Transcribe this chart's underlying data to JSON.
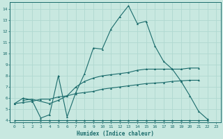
{
  "xlabel": "Humidex (Indice chaleur)",
  "xlim": [
    -0.5,
    23.5
  ],
  "ylim": [
    3.8,
    14.6
  ],
  "yticks": [
    4,
    5,
    6,
    7,
    8,
    9,
    10,
    11,
    12,
    13,
    14
  ],
  "xticks": [
    0,
    1,
    2,
    3,
    4,
    5,
    6,
    7,
    8,
    9,
    10,
    11,
    12,
    13,
    14,
    15,
    16,
    17,
    18,
    19,
    20,
    21,
    22,
    23
  ],
  "bg_color": "#c8e8e0",
  "line_color": "#1a6b6b",
  "grid_color": "#b0d8d0",
  "line1_x": [
    0,
    1,
    2,
    3,
    4,
    5,
    6,
    7,
    8,
    9,
    10,
    11,
    12,
    13,
    14,
    15,
    16,
    17,
    18,
    19,
    20,
    21,
    22
  ],
  "line1_y": [
    5.5,
    6.0,
    5.8,
    4.2,
    4.5,
    8.0,
    4.3,
    6.5,
    8.2,
    10.5,
    10.4,
    12.2,
    13.3,
    14.3,
    12.7,
    12.9,
    10.7,
    9.3,
    8.6,
    7.5,
    6.2,
    4.8,
    4.1
  ],
  "line2_x": [
    1,
    2,
    4,
    5,
    6,
    7,
    8,
    9,
    10,
    11,
    12,
    13,
    14,
    15,
    16,
    17,
    18,
    19,
    20,
    21
  ],
  "line2_y": [
    5.8,
    5.9,
    5.5,
    5.8,
    6.2,
    7.0,
    7.5,
    7.8,
    8.0,
    8.1,
    8.2,
    8.3,
    8.5,
    8.6,
    8.6,
    8.6,
    8.6,
    8.6,
    8.7,
    8.7
  ],
  "line3_x": [
    0,
    1,
    2,
    3,
    4,
    5,
    6,
    7,
    8,
    9,
    10,
    11,
    12,
    13,
    14,
    15,
    16,
    17,
    18,
    19,
    20,
    21
  ],
  "line3_y": [
    5.5,
    5.6,
    5.7,
    5.9,
    5.9,
    6.1,
    6.2,
    6.4,
    6.5,
    6.6,
    6.8,
    6.9,
    7.0,
    7.1,
    7.2,
    7.3,
    7.35,
    7.4,
    7.5,
    7.55,
    7.6,
    7.6
  ],
  "line4_x": [
    0,
    3,
    4,
    5,
    6,
    7,
    8,
    9,
    10,
    11,
    12,
    13,
    14,
    15,
    16,
    17,
    18,
    19,
    20,
    21,
    22
  ],
  "line4_y": [
    4.0,
    4.0,
    4.0,
    4.0,
    4.0,
    4.0,
    4.0,
    4.0,
    4.0,
    4.0,
    4.0,
    4.0,
    4.0,
    4.0,
    4.0,
    4.0,
    4.0,
    4.0,
    4.0,
    4.0,
    4.0
  ]
}
